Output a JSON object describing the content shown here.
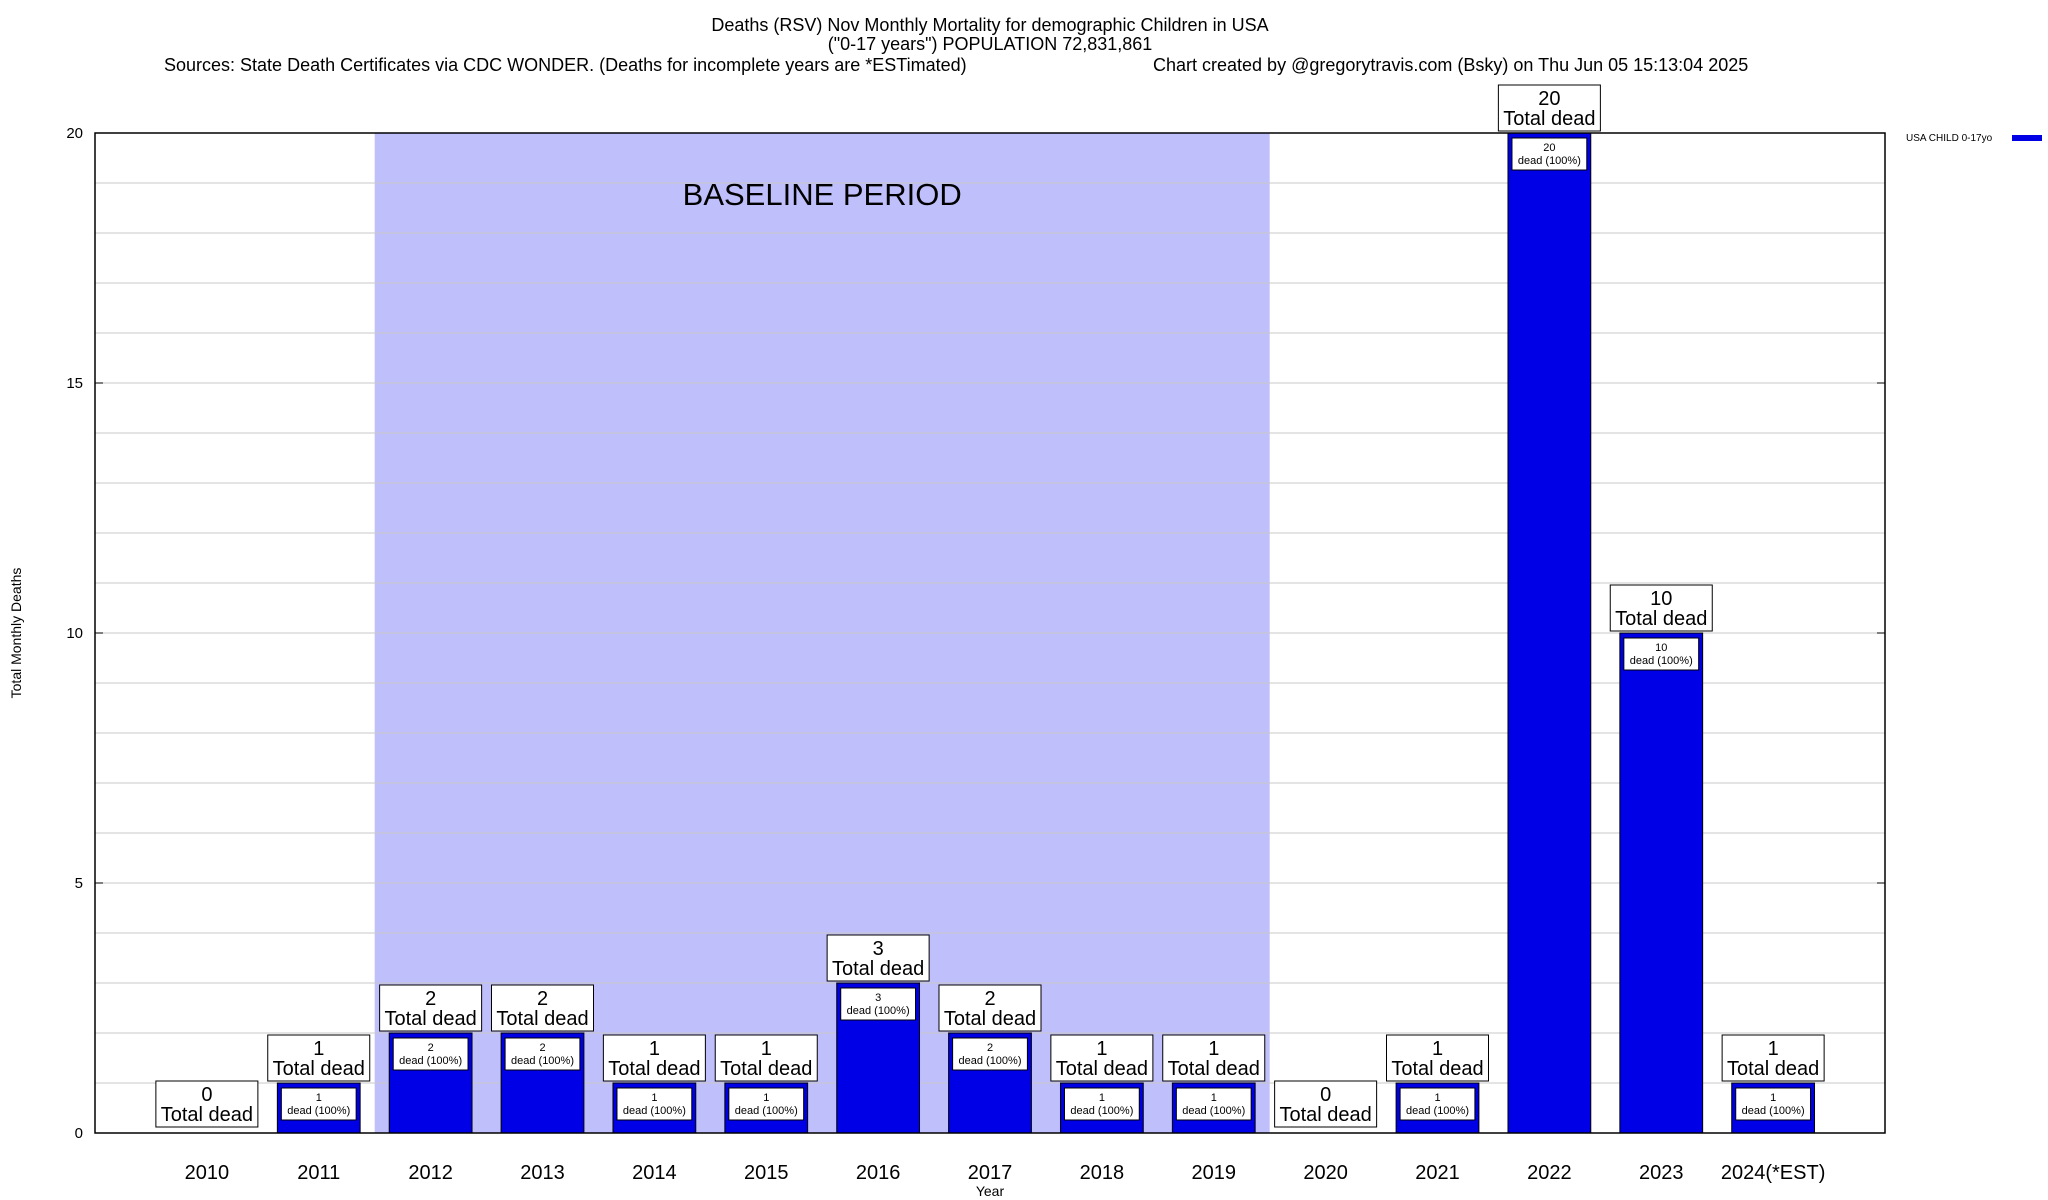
{
  "chart_data": {
    "type": "bar",
    "title_lines": [
      "Deaths (RSV) Nov Monthly Mortality for demographic Children in USA",
      "(\"0-17 years\") POPULATION 72,831,861"
    ],
    "sources": "Sources: State Death Certificates via CDC WONDER. (Deaths for incomplete years are *ESTimated)",
    "credit": "Chart created by @gregorytravis.com (Bsky) on Thu Jun 05 15:13:04 2025",
    "xlabel": "Year",
    "ylabel": "Total Monthly Deaths",
    "ylim": [
      0,
      20
    ],
    "yticks": [
      0,
      5,
      10,
      15,
      20
    ],
    "grid": true,
    "categories": [
      "2010",
      "2011",
      "2012",
      "2013",
      "2014",
      "2015",
      "2016",
      "2017",
      "2018",
      "2019",
      "2020",
      "2021",
      "2022",
      "2023",
      "2024(*EST)"
    ],
    "series": [
      {
        "name": "USA CHILD 0-17yo",
        "color": "#0000e6",
        "values": [
          0,
          1,
          2,
          2,
          1,
          1,
          3,
          2,
          1,
          1,
          0,
          1,
          20,
          10,
          1
        ]
      }
    ],
    "total_label_suffix": "Total dead",
    "inner_label_suffix": "dead (100%)",
    "baseline": {
      "label": "BASELINE PERIOD",
      "from": "2012",
      "to": "2019",
      "color": "#bfbffc"
    },
    "legend_position": "top-right"
  }
}
